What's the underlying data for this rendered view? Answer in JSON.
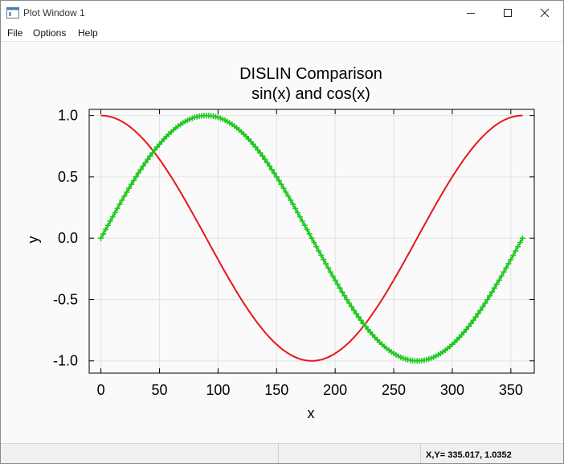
{
  "window": {
    "title": "Plot Window 1"
  },
  "menu": {
    "items": [
      "File",
      "Options",
      "Help"
    ]
  },
  "status": {
    "readout": "X,Y= 335.017, 1.0352"
  },
  "icons": {
    "app": "plot-window-icon",
    "minimize": "minimize-icon",
    "maximize": "maximize-icon",
    "close": "close-icon"
  },
  "chart_data": {
    "type": "line",
    "title": "DISLIN Comparison",
    "subtitle": "sin(x) and cos(x)",
    "xlabel": "x",
    "ylabel": "y",
    "xlim": [
      -10,
      370
    ],
    "ylim": [
      -1.1,
      1.05
    ],
    "xticks": [
      0,
      50,
      100,
      150,
      200,
      250,
      300,
      350
    ],
    "xtick_labels": [
      "0",
      "50",
      "100",
      "150",
      "200",
      "250",
      "300",
      "350"
    ],
    "yticks": [
      1.0,
      0.5,
      0.0,
      -0.5,
      -1.0
    ],
    "ytick_labels": [
      "1.0",
      "0.5",
      "0.0",
      "-0.5",
      "-1.0"
    ],
    "grid": true,
    "x": [
      0,
      10,
      20,
      30,
      40,
      50,
      60,
      70,
      80,
      90,
      100,
      110,
      120,
      130,
      140,
      150,
      160,
      170,
      180,
      190,
      200,
      210,
      220,
      230,
      240,
      250,
      260,
      270,
      280,
      290,
      300,
      310,
      320,
      330,
      340,
      350,
      360
    ],
    "series": [
      {
        "name": "",
        "color": "#e8141c",
        "marker": "none",
        "values": [
          1.0,
          0.985,
          0.94,
          0.866,
          0.766,
          0.643,
          0.5,
          0.342,
          0.174,
          0.0,
          -0.174,
          -0.342,
          -0.5,
          -0.643,
          -0.766,
          -0.866,
          -0.94,
          -0.985,
          -1.0,
          -0.985,
          -0.94,
          -0.866,
          -0.766,
          -0.643,
          -0.5,
          -0.342,
          -0.174,
          0.0,
          0.174,
          0.342,
          0.5,
          0.643,
          0.766,
          0.866,
          0.94,
          0.985,
          1.0
        ]
      },
      {
        "name": "",
        "color": "#1ec81e",
        "marker": "plus",
        "values": [
          0.0,
          0.174,
          0.342,
          0.5,
          0.643,
          0.766,
          0.866,
          0.94,
          0.985,
          1.0,
          0.985,
          0.94,
          0.866,
          0.766,
          0.643,
          0.5,
          0.342,
          0.174,
          0.0,
          -0.174,
          -0.342,
          -0.5,
          -0.643,
          -0.766,
          -0.866,
          -0.94,
          -0.985,
          -1.0,
          -0.985,
          -0.94,
          -0.866,
          -0.766,
          -0.643,
          -0.5,
          -0.342,
          -0.174,
          0.0
        ]
      }
    ]
  }
}
